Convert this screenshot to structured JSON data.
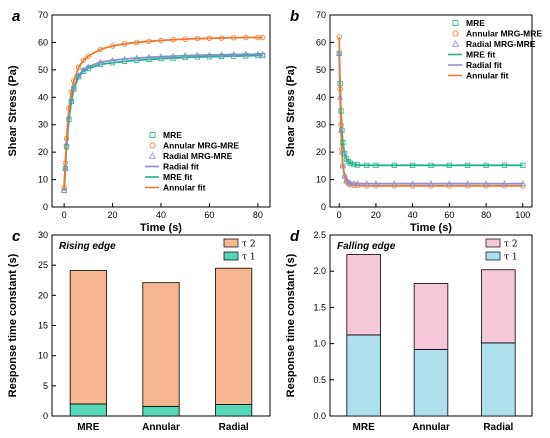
{
  "colors": {
    "mre": "#1fb48a",
    "annular": "#f07a2e",
    "radial": "#8f8fd6",
    "tau1_bar_c": "#55d6b5",
    "tau2_bar_c": "#f7b791",
    "tau1_bar_d": "#aee0ee",
    "tau2_bar_d": "#f4c8d8"
  },
  "chart_data": [
    {
      "panel": "a",
      "type": "scatter",
      "xlabel": "Time (s)",
      "ylabel": "Shear Stress (Pa)",
      "xlim": [
        -5,
        85
      ],
      "ylim": [
        0,
        70
      ],
      "xticks": [
        0,
        20,
        40,
        60,
        80
      ],
      "yticks": [
        0,
        10,
        20,
        30,
        40,
        50,
        60,
        70
      ],
      "legend_position": "bottom-right",
      "legend": [
        "MRE",
        "Annular MRG-MRE",
        "Radial MRG-MRE",
        "Radial fit",
        "MRE fit",
        "Annular fit"
      ],
      "series": [
        {
          "name": "MRE",
          "key": "mre",
          "kind": "marker",
          "marker": "square",
          "x": [
            0,
            0.5,
            1,
            2,
            3,
            4,
            6,
            8,
            10,
            15,
            20,
            25,
            30,
            35,
            40,
            45,
            50,
            55,
            60,
            65,
            70,
            75,
            80,
            82
          ],
          "y": [
            6,
            14,
            22,
            32,
            38.5,
            43,
            47.5,
            49.5,
            50.5,
            52,
            52.6,
            53.1,
            53.5,
            53.8,
            54.1,
            54.3,
            54.5,
            54.7,
            54.8,
            54.9,
            55,
            55.1,
            55.2,
            55.2
          ]
        },
        {
          "name": "Annular MRG-MRE",
          "key": "annular",
          "kind": "marker",
          "marker": "circle",
          "x": [
            0,
            0.5,
            1,
            2,
            3,
            4,
            6,
            8,
            10,
            15,
            20,
            25,
            30,
            35,
            40,
            45,
            50,
            55,
            60,
            65,
            70,
            75,
            80,
            82
          ],
          "y": [
            7,
            16,
            25,
            36,
            42,
            46,
            51,
            53.5,
            55,
            57.5,
            58.7,
            59.5,
            60,
            60.4,
            60.7,
            61,
            61.2,
            61.4,
            61.5,
            61.6,
            61.7,
            61.8,
            61.8,
            61.8
          ]
        },
        {
          "name": "Radial MRG-MRE",
          "key": "radial",
          "kind": "marker",
          "marker": "triangle",
          "x": [
            0,
            0.5,
            1,
            2,
            3,
            4,
            6,
            8,
            10,
            15,
            20,
            25,
            30,
            35,
            40,
            45,
            50,
            55,
            60,
            65,
            70,
            75,
            80,
            82
          ],
          "y": [
            6,
            14,
            23,
            33,
            39,
            43.5,
            48,
            50,
            51.2,
            52.8,
            53.5,
            54,
            54.3,
            54.6,
            54.8,
            55,
            55.2,
            55.3,
            55.4,
            55.5,
            55.6,
            55.7,
            55.7,
            55.7
          ]
        },
        {
          "name": "Radial fit",
          "key": "radial",
          "kind": "line",
          "x": [
            0,
            0.5,
            1,
            2,
            3,
            4,
            6,
            8,
            10,
            15,
            20,
            25,
            30,
            35,
            40,
            45,
            50,
            55,
            60,
            65,
            70,
            75,
            80,
            82
          ],
          "y": [
            6,
            14,
            23,
            33,
            39,
            43.5,
            48,
            50,
            51.2,
            52.8,
            53.5,
            54,
            54.3,
            54.6,
            54.8,
            55,
            55.2,
            55.3,
            55.4,
            55.5,
            55.6,
            55.7,
            55.7,
            55.7
          ]
        },
        {
          "name": "MRE fit",
          "key": "mre",
          "kind": "line",
          "x": [
            0,
            0.5,
            1,
            2,
            3,
            4,
            6,
            8,
            10,
            15,
            20,
            25,
            30,
            35,
            40,
            45,
            50,
            55,
            60,
            65,
            70,
            75,
            80,
            82
          ],
          "y": [
            6,
            14,
            22,
            32,
            38.5,
            43,
            47.5,
            49.5,
            50.5,
            52,
            52.6,
            53.1,
            53.5,
            53.8,
            54.1,
            54.3,
            54.5,
            54.7,
            54.8,
            54.9,
            55,
            55.1,
            55.2,
            55.2
          ]
        },
        {
          "name": "Annular fit",
          "key": "annular",
          "kind": "line",
          "x": [
            0,
            0.5,
            1,
            2,
            3,
            4,
            6,
            8,
            10,
            15,
            20,
            25,
            30,
            35,
            40,
            45,
            50,
            55,
            60,
            65,
            70,
            75,
            80,
            82
          ],
          "y": [
            7,
            16,
            25,
            36,
            42,
            46,
            51,
            53.5,
            55,
            57.5,
            58.7,
            59.5,
            60,
            60.4,
            60.7,
            61,
            61.2,
            61.4,
            61.5,
            61.6,
            61.7,
            61.8,
            61.8,
            61.8
          ]
        }
      ]
    },
    {
      "panel": "b",
      "type": "scatter",
      "xlabel": "Time (s)",
      "ylabel": "Shear Stress (Pa)",
      "xlim": [
        -5,
        105
      ],
      "ylim": [
        0,
        70
      ],
      "xticks": [
        0,
        20,
        40,
        60,
        80,
        100
      ],
      "yticks": [
        0,
        10,
        20,
        30,
        40,
        50,
        60,
        70
      ],
      "legend_position": "top-right",
      "legend": [
        "MRE",
        "Annular MRG-MRE",
        "Radial MRG-MRE",
        "MRE fit",
        "Radial fit",
        "Annular fit"
      ],
      "series": [
        {
          "name": "MRE",
          "key": "mre",
          "kind": "marker",
          "marker": "square",
          "x": [
            0,
            0.5,
            1,
            1.5,
            2,
            3,
            4,
            5,
            6,
            8,
            10,
            15,
            20,
            30,
            40,
            50,
            60,
            70,
            80,
            90,
            100
          ],
          "y": [
            56,
            45,
            35,
            28,
            23.5,
            19.5,
            17.5,
            16.5,
            16,
            15.5,
            15.3,
            15.2,
            15.2,
            15.2,
            15.2,
            15.2,
            15.2,
            15.2,
            15.2,
            15.2,
            15.2
          ]
        },
        {
          "name": "Annular MRG-MRE",
          "key": "annular",
          "kind": "marker",
          "marker": "circle",
          "x": [
            0,
            0.5,
            1,
            1.5,
            2,
            3,
            4,
            5,
            6,
            8,
            10,
            15,
            20,
            30,
            40,
            50,
            60,
            70,
            80,
            90,
            100
          ],
          "y": [
            62,
            43,
            30,
            21,
            15,
            11,
            9.2,
            8.5,
            8.1,
            7.9,
            7.8,
            7.7,
            7.7,
            7.7,
            7.7,
            7.7,
            7.7,
            7.7,
            7.7,
            7.7,
            7.7
          ]
        },
        {
          "name": "Radial MRG-MRE",
          "key": "radial",
          "kind": "marker",
          "marker": "triangle",
          "x": [
            0,
            0.5,
            1,
            1.5,
            2,
            3,
            4,
            5,
            6,
            8,
            10,
            15,
            20,
            30,
            40,
            50,
            60,
            70,
            80,
            90,
            100
          ],
          "y": [
            56,
            40,
            28,
            20,
            15,
            11.5,
            9.8,
            9.1,
            8.8,
            8.6,
            8.5,
            8.5,
            8.5,
            8.5,
            8.5,
            8.5,
            8.5,
            8.5,
            8.5,
            8.5,
            8.5
          ]
        },
        {
          "name": "MRE fit",
          "key": "mre",
          "kind": "line",
          "x": [
            0,
            0.5,
            1,
            1.5,
            2,
            3,
            4,
            5,
            6,
            8,
            10,
            15,
            20,
            30,
            40,
            50,
            60,
            70,
            80,
            90,
            100
          ],
          "y": [
            56,
            45,
            35,
            28,
            23.5,
            19.5,
            17.5,
            16.5,
            16,
            15.5,
            15.3,
            15.2,
            15.2,
            15.2,
            15.2,
            15.2,
            15.2,
            15.2,
            15.2,
            15.2,
            15.2
          ]
        },
        {
          "name": "Radial fit",
          "key": "radial",
          "kind": "line",
          "x": [
            0,
            0.5,
            1,
            1.5,
            2,
            3,
            4,
            5,
            6,
            8,
            10,
            15,
            20,
            30,
            40,
            50,
            60,
            70,
            80,
            90,
            100
          ],
          "y": [
            56,
            40,
            28,
            20,
            15,
            11.5,
            9.8,
            9.1,
            8.8,
            8.6,
            8.5,
            8.5,
            8.5,
            8.5,
            8.5,
            8.5,
            8.5,
            8.5,
            8.5,
            8.5,
            8.5
          ]
        },
        {
          "name": "Annular fit",
          "key": "annular",
          "kind": "line",
          "x": [
            0,
            0.5,
            1,
            1.5,
            2,
            3,
            4,
            5,
            6,
            8,
            10,
            15,
            20,
            30,
            40,
            50,
            60,
            70,
            80,
            90,
            100
          ],
          "y": [
            62,
            43,
            30,
            21,
            15,
            11,
            9.2,
            8.5,
            8.1,
            7.9,
            7.8,
            7.7,
            7.7,
            7.7,
            7.7,
            7.7,
            7.7,
            7.7,
            7.7,
            7.7,
            7.7
          ]
        }
      ]
    },
    {
      "panel": "c",
      "type": "bar",
      "stacked": true,
      "inset_title": "Rising edge",
      "ylabel": "Response time constant (s)",
      "xlabel": "",
      "ylim": [
        0,
        30
      ],
      "yticks": [
        0,
        5,
        10,
        15,
        20,
        25,
        30
      ],
      "categories": [
        "MRE",
        "Annular",
        "Radial"
      ],
      "legend_position": "top-right",
      "series": [
        {
          "name": "τ 1",
          "color_key": "tau1_bar_c",
          "values": [
            2.0,
            1.6,
            1.9
          ]
        },
        {
          "name": "τ 2",
          "color_key": "tau2_bar_c",
          "values": [
            22.1,
            20.5,
            22.6
          ]
        }
      ]
    },
    {
      "panel": "d",
      "type": "bar",
      "stacked": true,
      "inset_title": "Falling edge",
      "ylabel": "Response time constant (s)",
      "xlabel": "",
      "ylim": [
        0,
        2.5
      ],
      "yticks": [
        0.0,
        0.5,
        1.0,
        1.5,
        2.0,
        2.5
      ],
      "categories": [
        "MRE",
        "Annular",
        "Radial"
      ],
      "legend_position": "top-right",
      "series": [
        {
          "name": "τ 1",
          "color_key": "tau1_bar_d",
          "values": [
            1.12,
            0.92,
            1.01
          ]
        },
        {
          "name": "τ 2",
          "color_key": "tau2_bar_d",
          "values": [
            1.11,
            0.91,
            1.01
          ]
        }
      ]
    }
  ]
}
